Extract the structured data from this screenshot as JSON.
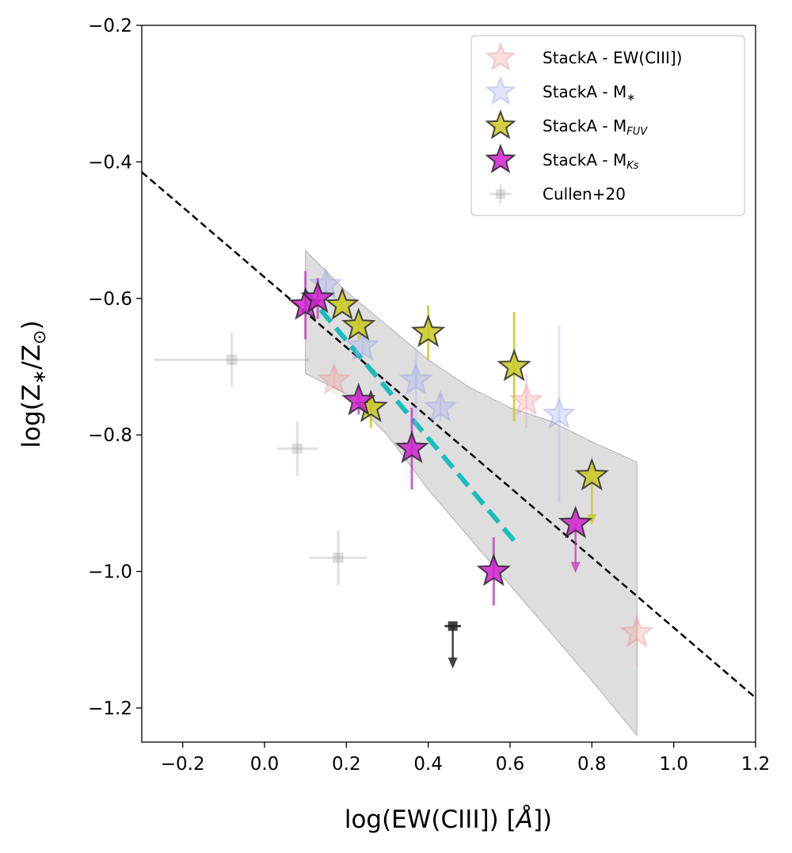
{
  "chart_data": {
    "type": "scatter",
    "xlabel_prefix": "log(EW(CIII]) [",
    "xlabel_unit": "Å",
    "xlabel_suffix": "])",
    "ylabel_prefix": "log(Z",
    "ylabel_sub": "∗",
    "ylabel_mid": "/Z",
    "ylabel_sun": "⊙",
    "ylabel_suffix": ")",
    "xlim": [
      -0.3,
      1.2
    ],
    "ylim": [
      -1.25,
      -0.2
    ],
    "xticks": [
      -0.2,
      0.0,
      0.2,
      0.4,
      0.6,
      0.8,
      1.0,
      1.2
    ],
    "xtick_labels": [
      "−0.2",
      "0.0",
      "0.2",
      "0.4",
      "0.6",
      "0.8",
      "1.0",
      "1.2"
    ],
    "yticks": [
      -0.2,
      -0.4,
      -0.6,
      -0.8,
      -1.0,
      -1.2
    ],
    "ytick_labels": [
      "−0.2",
      "−0.4",
      "−0.6",
      "−0.8",
      "−1.0",
      "−1.2"
    ],
    "legend_position": "top-right",
    "series": [
      {
        "name": "StackA - EW(CIII])",
        "legend_text": "StackA - EW(CIII])",
        "legend_sub": "",
        "marker": "star",
        "fill": "#f4a0a0",
        "edge": "#e08a8a",
        "alpha": 0.35,
        "errcolor": "#f4a0a0",
        "points": [
          {
            "x": 0.17,
            "y": -0.72,
            "ylo": 0.02,
            "yhi": 0.02
          },
          {
            "x": 0.64,
            "y": -0.75,
            "ylo": 0.04,
            "yhi": 0.04
          },
          {
            "x": 0.91,
            "y": -1.09,
            "ylo": 0.05,
            "yhi": 0.03
          }
        ]
      },
      {
        "name": "StackA - M*",
        "legend_text": "StackA - M",
        "legend_sub": "∗",
        "marker": "star",
        "fill": "#aab0f0",
        "edge": "#9098e0",
        "alpha": 0.35,
        "errcolor": "#aab0f0",
        "points": [
          {
            "x": 0.15,
            "y": -0.58,
            "ylo": 0.02,
            "yhi": 0.02
          },
          {
            "x": 0.24,
            "y": -0.67,
            "ylo": 0.02,
            "yhi": 0.02
          },
          {
            "x": 0.37,
            "y": -0.72,
            "ylo": 0.07,
            "yhi": 0.05
          },
          {
            "x": 0.43,
            "y": -0.76,
            "ylo": 0.02,
            "yhi": 0.02
          },
          {
            "x": 0.72,
            "y": -0.77,
            "ylo": 0.13,
            "yhi": 0.13
          }
        ]
      },
      {
        "name": "StackA - MFUV",
        "legend_text": "StackA - M",
        "legend_sub": "FUV",
        "marker": "star",
        "fill": "#c8c820",
        "edge": "#2a2a2a",
        "alpha": 0.85,
        "errcolor": "#c8c820",
        "points": [
          {
            "x": 0.19,
            "y": -0.61,
            "ylo": 0.01,
            "yhi": 0.01
          },
          {
            "x": 0.23,
            "y": -0.64,
            "ylo": 0.02,
            "yhi": 0.02
          },
          {
            "x": 0.26,
            "y": -0.76,
            "ylo": 0.03,
            "yhi": 0.02
          },
          {
            "x": 0.4,
            "y": -0.65,
            "ylo": 0.04,
            "yhi": 0.04
          },
          {
            "x": 0.61,
            "y": -0.7,
            "ylo": 0.08,
            "yhi": 0.08
          },
          {
            "x": 0.8,
            "y": -0.86,
            "ylo": 0.0,
            "yhi": 0.0,
            "upper_limit_to": -0.93
          }
        ]
      },
      {
        "name": "StackA - MKs",
        "legend_text": "StackA - M",
        "legend_sub": "Ks",
        "marker": "star",
        "fill": "#d020d0",
        "edge": "#2a2a2a",
        "alpha": 0.85,
        "errcolor": "#c040c0",
        "points": [
          {
            "x": 0.1,
            "y": -0.61,
            "ylo": 0.05,
            "yhi": 0.05
          },
          {
            "x": 0.13,
            "y": -0.6,
            "ylo": 0.03,
            "yhi": 0.03
          },
          {
            "x": 0.23,
            "y": -0.75,
            "ylo": 0.02,
            "yhi": 0.02
          },
          {
            "x": 0.36,
            "y": -0.82,
            "ylo": 0.06,
            "yhi": 0.06
          },
          {
            "x": 0.56,
            "y": -1.0,
            "ylo": 0.05,
            "yhi": 0.05
          },
          {
            "x": 0.76,
            "y": -0.93,
            "ylo": 0.0,
            "yhi": 0.0,
            "upper_limit_to": -1.0
          }
        ]
      },
      {
        "name": "Cullen+20",
        "legend_text": "Cullen+20",
        "legend_sub": "",
        "marker": "square",
        "fill": "#999999",
        "edge": "#999999",
        "alpha": 0.3,
        "errcolor": "#999999",
        "points": [
          {
            "x": -0.08,
            "y": -0.69,
            "xlo": 0.19,
            "xhi": 0.19,
            "ylo": 0.04,
            "yhi": 0.04
          },
          {
            "x": 0.08,
            "y": -0.82,
            "xlo": 0.05,
            "xhi": 0.05,
            "ylo": 0.04,
            "yhi": 0.04
          },
          {
            "x": 0.18,
            "y": -0.98,
            "xlo": 0.07,
            "xhi": 0.07,
            "ylo": 0.04,
            "yhi": 0.04
          }
        ]
      }
    ],
    "extra_point": {
      "x": 0.46,
      "y": -1.08,
      "xlo": 0.02,
      "xhi": 0.02,
      "upper_limit_to": -1.14,
      "color": "#222222"
    },
    "fit_line": {
      "x": [
        -0.3,
        1.2
      ],
      "y": [
        -0.415,
        -1.185
      ],
      "color": "#000000",
      "style": "dashed"
    },
    "cyan_line": {
      "x": [
        0.1,
        0.61
      ],
      "y": [
        -0.59,
        -0.955
      ],
      "color": "#17bebe",
      "style": "dashed"
    },
    "shaded_band": {
      "color": "#c8c8c8",
      "upper": [
        [
          0.1,
          -0.53
        ],
        [
          0.2,
          -0.59
        ],
        [
          0.3,
          -0.64
        ],
        [
          0.4,
          -0.69
        ],
        [
          0.5,
          -0.73
        ],
        [
          0.6,
          -0.76
        ],
        [
          0.7,
          -0.78
        ],
        [
          0.8,
          -0.81
        ],
        [
          0.91,
          -0.84
        ]
      ],
      "lower": [
        [
          0.1,
          -0.71
        ],
        [
          0.2,
          -0.74
        ],
        [
          0.3,
          -0.8
        ],
        [
          0.4,
          -0.88
        ],
        [
          0.5,
          -0.95
        ],
        [
          0.6,
          -1.02
        ],
        [
          0.7,
          -1.09
        ],
        [
          0.8,
          -1.16
        ],
        [
          0.91,
          -1.24
        ]
      ]
    }
  }
}
